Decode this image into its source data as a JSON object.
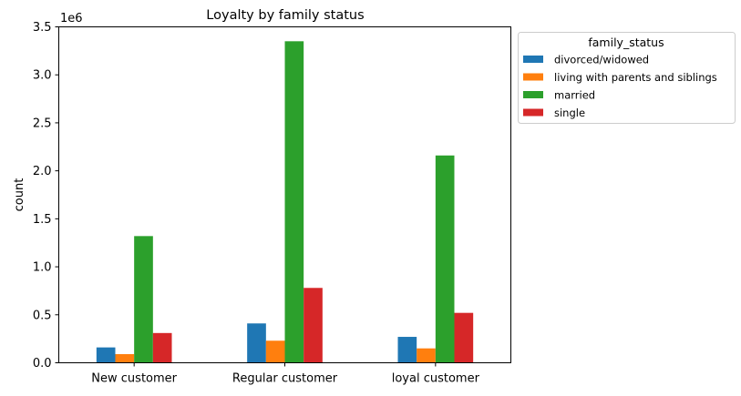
{
  "chart_data": {
    "type": "bar",
    "title": "Loyalty by family status",
    "xlabel": "",
    "ylabel": "count",
    "y_offset_label": "1e6",
    "y_multiplier": 1000000,
    "ylim": [
      0,
      3.5
    ],
    "yticks": [
      0.0,
      0.5,
      1.0,
      1.5,
      2.0,
      2.5,
      3.0,
      3.5
    ],
    "ytick_labels": [
      "0.0",
      "0.5",
      "1.0",
      "1.5",
      "2.0",
      "2.5",
      "3.0",
      "3.5"
    ],
    "categories": [
      "New customer",
      "Regular customer",
      "loyal customer"
    ],
    "grid": false,
    "legend": {
      "title": "family_status",
      "placement": "outside upper right"
    },
    "series": [
      {
        "name": "divorced/widowed",
        "color": "#1f77b4",
        "values": [
          0.16,
          0.41,
          0.27
        ]
      },
      {
        "name": "living with parents and siblings",
        "color": "#ff7f0e",
        "values": [
          0.09,
          0.23,
          0.15
        ]
      },
      {
        "name": "married",
        "color": "#2ca02c",
        "values": [
          1.32,
          3.35,
          2.16
        ]
      },
      {
        "name": "single",
        "color": "#d62728",
        "values": [
          0.31,
          0.78,
          0.52
        ]
      }
    ]
  }
}
